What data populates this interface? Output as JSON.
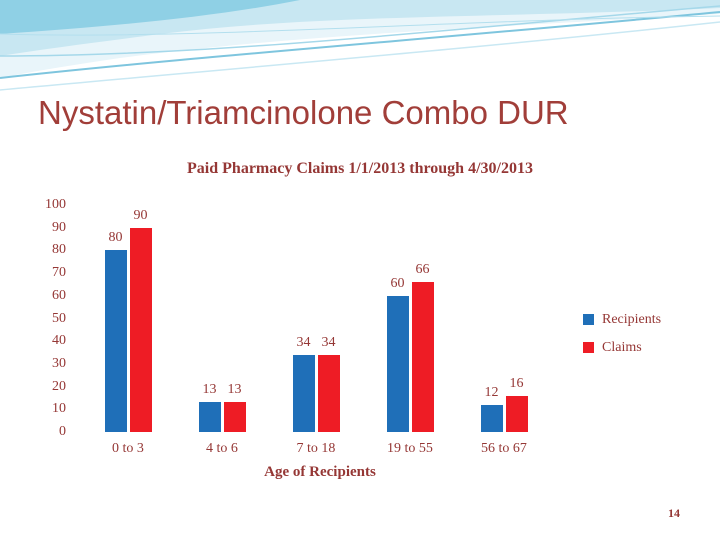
{
  "slide": {
    "title": "Nystatin/Triamcinolone Combo DUR",
    "page_number": "14"
  },
  "chart_data": {
    "type": "bar",
    "title": "Paid Pharmacy Claims 1/1/2013 through 4/30/2013",
    "categories": [
      "0 to 3",
      "4 to 6",
      "7 to 18",
      "19 to 55",
      "56 to 67"
    ],
    "series": [
      {
        "name": "Recipients",
        "color": "#1F6FB8",
        "values": [
          80,
          13,
          34,
          60,
          12
        ]
      },
      {
        "name": "Claims",
        "color": "#EE1C25",
        "values": [
          90,
          13,
          34,
          66,
          16
        ]
      }
    ],
    "xlabel": "Age of Recipients",
    "ylabel": "",
    "ylim": [
      0,
      100
    ],
    "ytick_step": 10,
    "grid": false,
    "legend_position": "right",
    "data_labels": true
  },
  "colors": {
    "title_text": "#A13E39",
    "chart_text": "#953735",
    "wave_light": "#C8E7F2",
    "wave_medium": "#8FD0E5"
  }
}
